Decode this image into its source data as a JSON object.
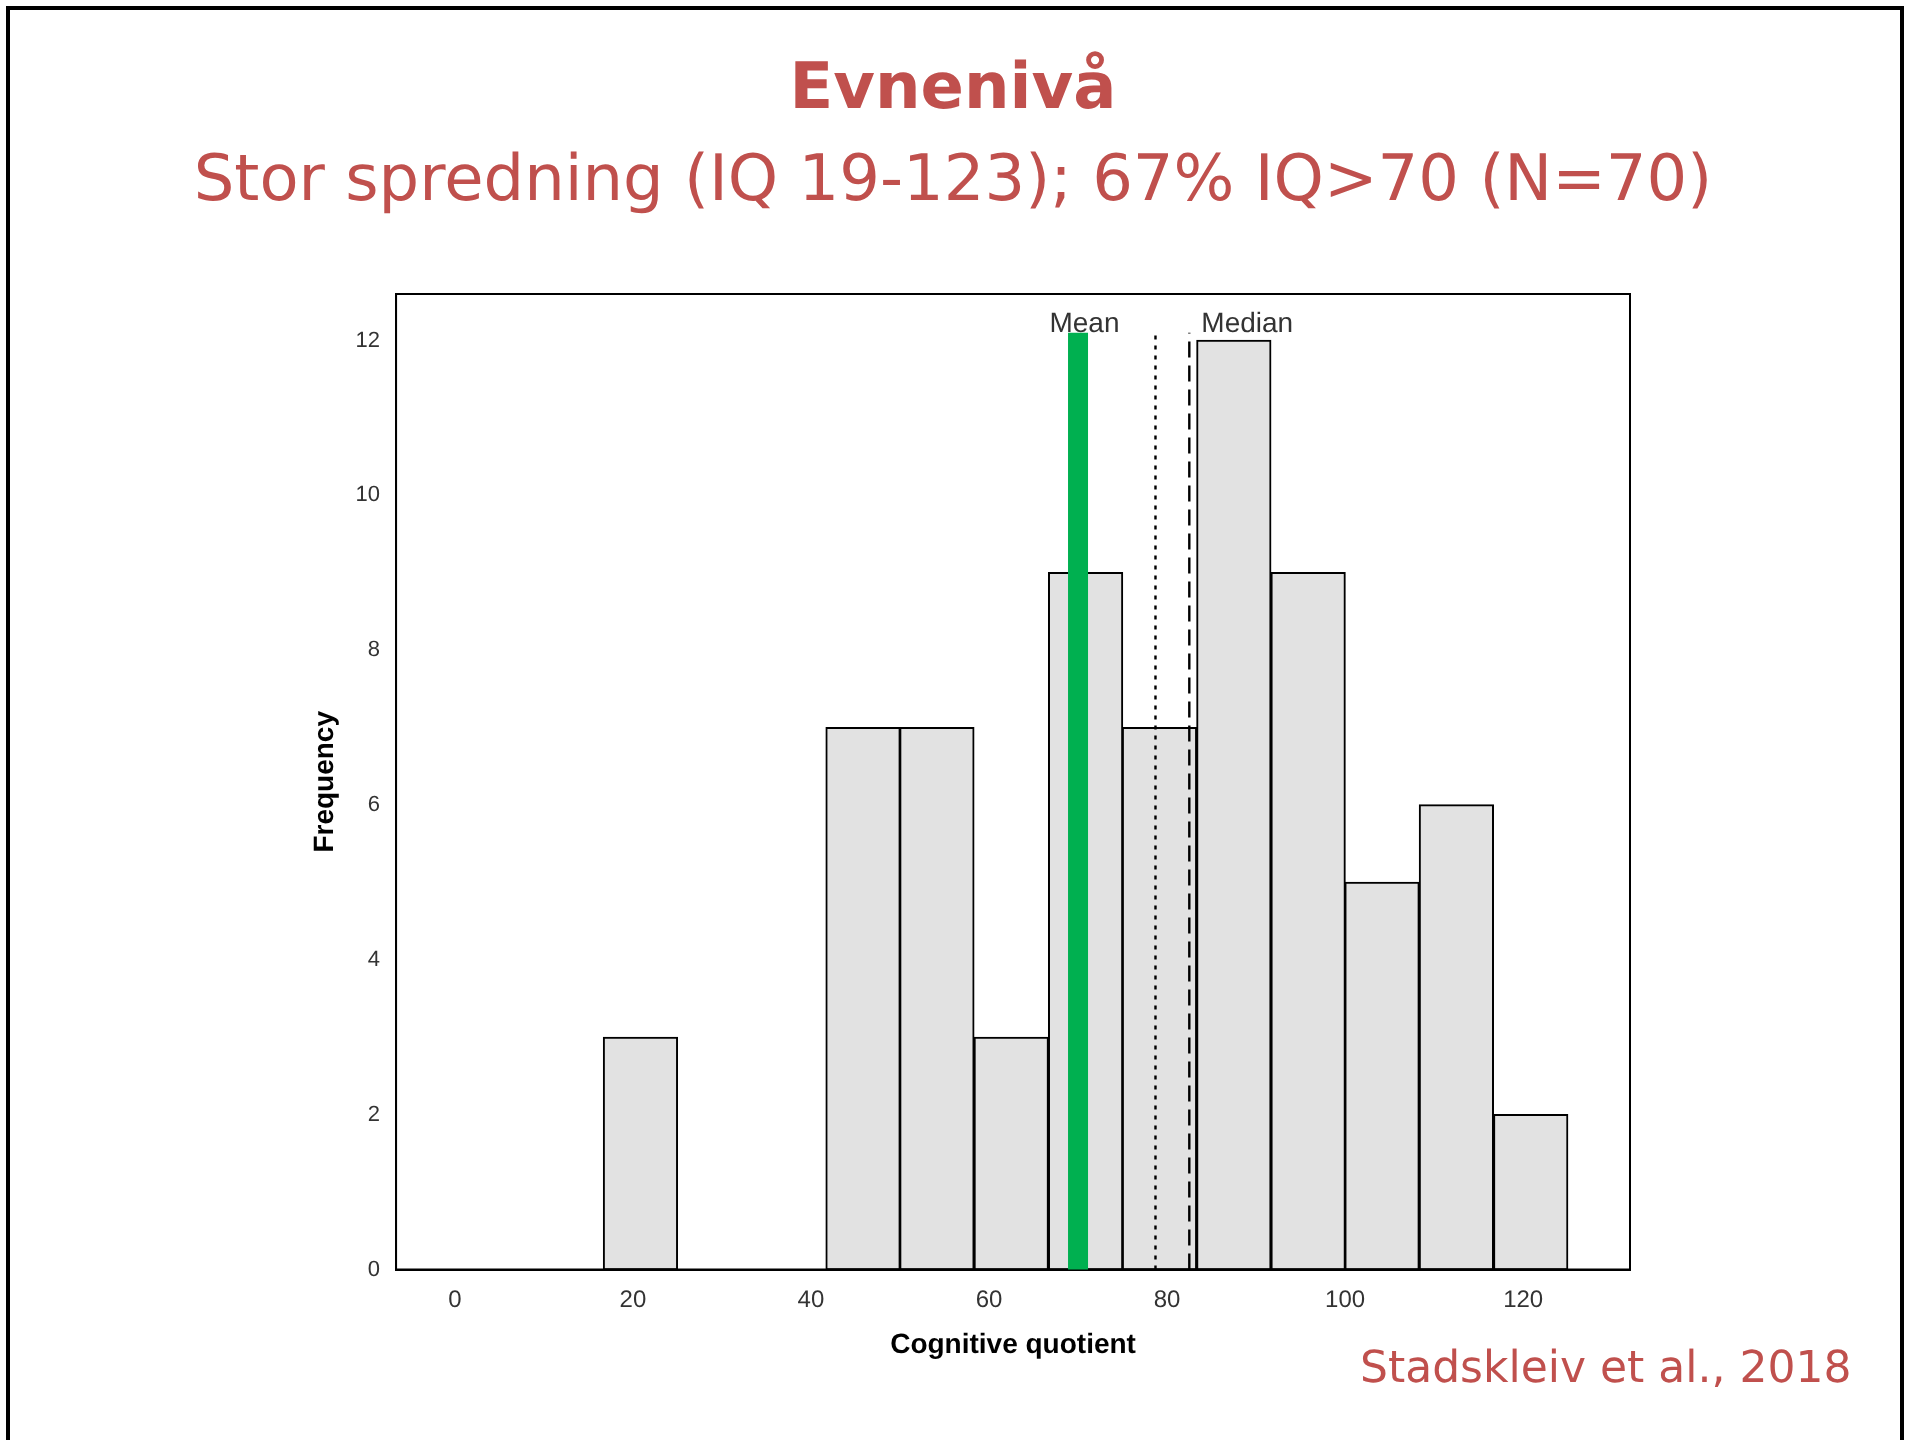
{
  "chart_data": {
    "type": "histogram",
    "title": "Evnenivå",
    "subtitle": "Stor spredning (IQ 19-123); 67% IQ>70 (N=70)",
    "xlabel": "Cognitive quotient",
    "ylabel": "Frequency",
    "bins": [
      16.7,
      25,
      33.3,
      41.7,
      50,
      58.3,
      66.7,
      75,
      83.3,
      91.7,
      100,
      108.3,
      116.7,
      125
    ],
    "values": [
      3,
      0,
      0,
      7,
      7,
      3,
      9,
      7,
      12,
      9,
      5,
      6,
      2
    ],
    "color": "#e2e2e2",
    "xlim": [
      -6.6,
      132
    ],
    "xticks": [
      0,
      20,
      40,
      60,
      80,
      100,
      120
    ],
    "ylim": [
      0,
      12.6
    ],
    "yticks": [
      0,
      2,
      4,
      6,
      8,
      10,
      12
    ],
    "grid": false,
    "legend": false,
    "ref_lines": [
      {
        "axis": "x",
        "value": 78.7,
        "label": "Mean",
        "color": "#000000",
        "line_style": "dotted"
      },
      {
        "axis": "x",
        "value": 82.5,
        "label": "Median",
        "color": "#000000",
        "line_style": "dashed"
      },
      {
        "axis": "x",
        "value": 70,
        "label": null,
        "color": "#00b050",
        "line_style": "solid"
      }
    ],
    "annotations": [
      "Stadskleiv et al., 2018"
    ]
  }
}
